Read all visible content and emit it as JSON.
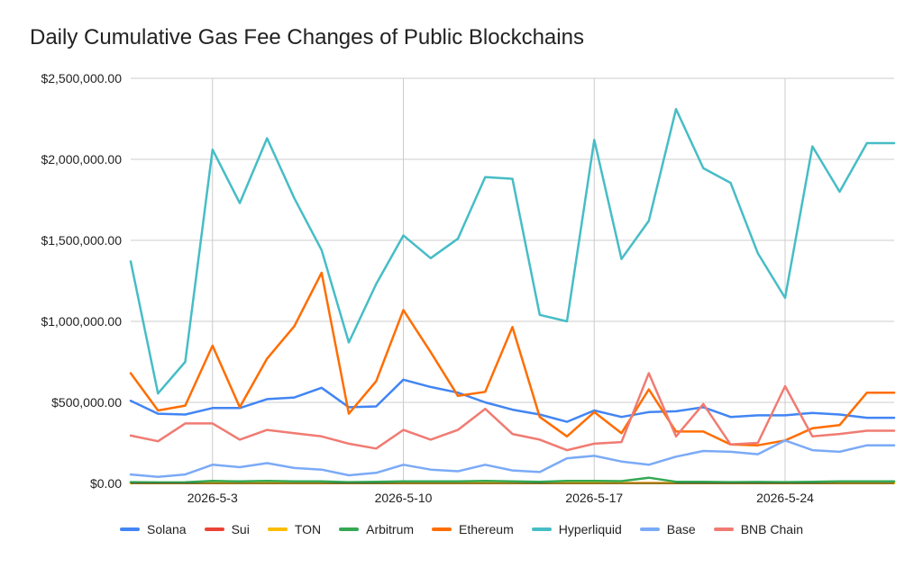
{
  "chart_data": {
    "type": "line",
    "title": "Daily Cumulative Gas Fee Changes of Public Blockchains",
    "xlabel": "",
    "ylabel": "",
    "x": [
      "2026-4-30",
      "2026-5-1",
      "2026-5-2",
      "2026-5-3",
      "2026-5-4",
      "2026-5-5",
      "2026-5-6",
      "2026-5-7",
      "2026-5-8",
      "2026-5-9",
      "2026-5-10",
      "2026-5-11",
      "2026-5-12",
      "2026-5-13",
      "2026-5-14",
      "2026-5-15",
      "2026-5-16",
      "2026-5-17",
      "2026-5-18",
      "2026-5-19",
      "2026-5-20",
      "2026-5-21",
      "2026-5-22",
      "2026-5-23",
      "2026-5-24",
      "2026-5-25",
      "2026-5-26",
      "2026-5-27",
      "2026-5-28"
    ],
    "x_tick_labels": [
      "2026-5-3",
      "2026-5-10",
      "2026-5-17",
      "2026-5-24"
    ],
    "y_tick_labels": [
      "$0.00",
      "$500,000.00",
      "$1,000,000.00",
      "$1,500,000.00",
      "$2,000,000.00",
      "$2,500,000.00"
    ],
    "ylim": [
      0,
      2500000
    ],
    "grid": true,
    "legend_position": "bottom",
    "series": [
      {
        "name": "Solana",
        "color": "#4285f4",
        "values": [
          510000,
          430000,
          425000,
          465000,
          465000,
          520000,
          530000,
          590000,
          470000,
          475000,
          640000,
          595000,
          560000,
          500000,
          455000,
          425000,
          380000,
          450000,
          410000,
          440000,
          445000,
          470000,
          410000,
          420000,
          420000,
          435000,
          425000,
          405000,
          405000
        ]
      },
      {
        "name": "Sui",
        "color": "#ea4335",
        "values": [
          3000,
          3000,
          3000,
          3000,
          3000,
          3000,
          3000,
          3000,
          3000,
          3000,
          3000,
          3000,
          3000,
          3000,
          3000,
          3000,
          3000,
          3000,
          3000,
          3000,
          3000,
          3000,
          3000,
          3000,
          3000,
          3000,
          3000,
          3000,
          3000
        ]
      },
      {
        "name": "TON",
        "color": "#fbbc04",
        "values": [
          1000,
          1000,
          1000,
          1000,
          1000,
          1000,
          1000,
          1000,
          1000,
          1000,
          1000,
          1000,
          1000,
          1000,
          1000,
          1000,
          1000,
          1000,
          1000,
          1000,
          1000,
          1000,
          1000,
          1000,
          1000,
          1000,
          1000,
          1000,
          1000
        ]
      },
      {
        "name": "Arbitrum",
        "color": "#34a853",
        "values": [
          8000,
          6000,
          7000,
          15000,
          12000,
          15000,
          13000,
          12000,
          8000,
          10000,
          12000,
          12000,
          12000,
          15000,
          12000,
          10000,
          15000,
          15000,
          14000,
          35000,
          10000,
          10000,
          8000,
          9000,
          8000,
          10000,
          12000,
          12000,
          12000
        ]
      },
      {
        "name": "Ethereum",
        "color": "#ff6d01",
        "values": [
          680000,
          450000,
          480000,
          850000,
          470000,
          770000,
          970000,
          1300000,
          430000,
          630000,
          1070000,
          810000,
          540000,
          565000,
          965000,
          410000,
          290000,
          440000,
          310000,
          580000,
          320000,
          320000,
          240000,
          235000,
          265000,
          340000,
          360000,
          560000,
          560000
        ]
      },
      {
        "name": "Hyperliquid",
        "color": "#46bdc6",
        "values": [
          1370000,
          555000,
          750000,
          2060000,
          1730000,
          2130000,
          1760000,
          1440000,
          870000,
          1230000,
          1530000,
          1390000,
          1510000,
          1890000,
          1880000,
          1040000,
          1000000,
          2120000,
          1385000,
          1620000,
          2310000,
          1945000,
          1855000,
          1420000,
          1145000,
          2080000,
          1800000,
          2100000,
          2100000
        ]
      },
      {
        "name": "Base",
        "color": "#7baaf7",
        "values": [
          55000,
          40000,
          55000,
          115000,
          100000,
          125000,
          95000,
          85000,
          50000,
          65000,
          115000,
          85000,
          75000,
          115000,
          80000,
          70000,
          155000,
          170000,
          135000,
          115000,
          165000,
          200000,
          195000,
          180000,
          265000,
          205000,
          195000,
          235000,
          235000
        ]
      },
      {
        "name": "BNB Chain",
        "color": "#f07b72",
        "values": [
          295000,
          260000,
          370000,
          370000,
          270000,
          330000,
          310000,
          290000,
          245000,
          215000,
          330000,
          270000,
          330000,
          460000,
          305000,
          270000,
          205000,
          245000,
          255000,
          680000,
          290000,
          490000,
          240000,
          250000,
          600000,
          290000,
          305000,
          325000,
          325000
        ]
      }
    ]
  }
}
